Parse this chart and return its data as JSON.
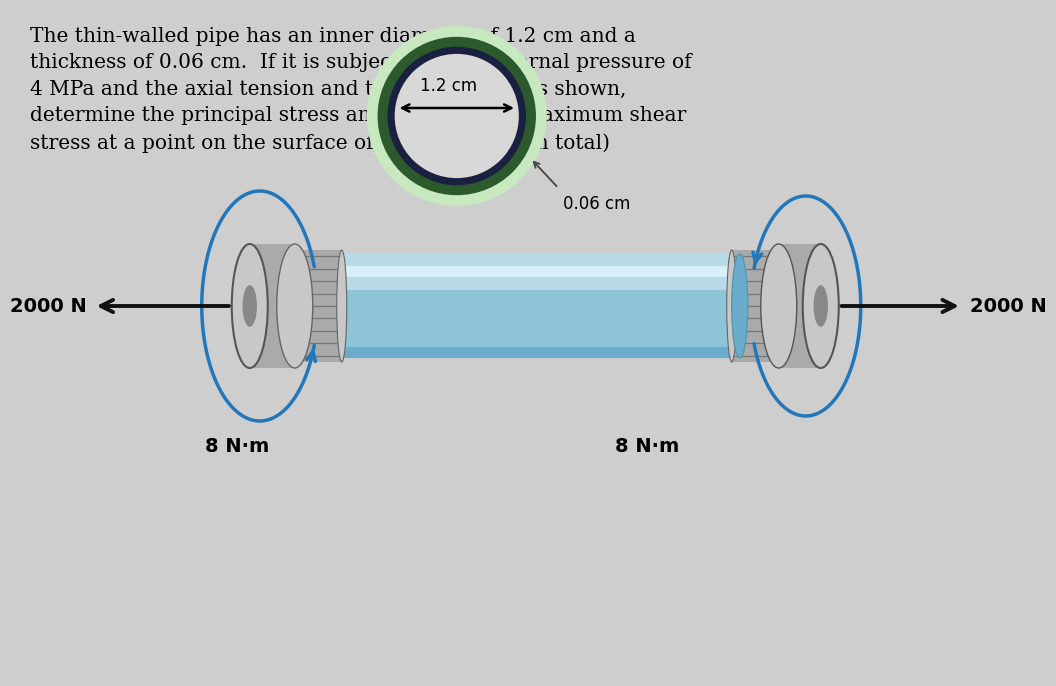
{
  "bg_color": "#cecece",
  "title_text": "The thin-walled pipe has an inner diameter of 1.2 cm and a\nthickness of 0.06 cm.  If it is subjected to an internal pressure of\n4 MPa and the axial tension and torsional loadings shown,\ndetermine the principal stress and the absolute maximum shear\nstress at a point on the surface of the pipe.  (15’ in total)",
  "title_fontsize": 14.5,
  "label_2000N_left": "2000 N",
  "label_2000N_right": "2000 N",
  "label_8Nm_left": "8 N·m",
  "label_8Nm_right": "8 N·m",
  "label_12cm": "1.2 cm",
  "label_006cm": "0.06 cm",
  "pipe_color_light": "#b8dae8",
  "pipe_color_mid": "#8ec4d8",
  "pipe_color_dark": "#6aaccc",
  "pipe_color_highlight": "#d8eef8",
  "cap_gray_light": "#c8c8c8",
  "cap_gray_mid": "#aaaaaa",
  "cap_gray_dark": "#888888",
  "thread_gray": "#999999",
  "torque_color": "#2277bb",
  "arrow_color": "#111111"
}
